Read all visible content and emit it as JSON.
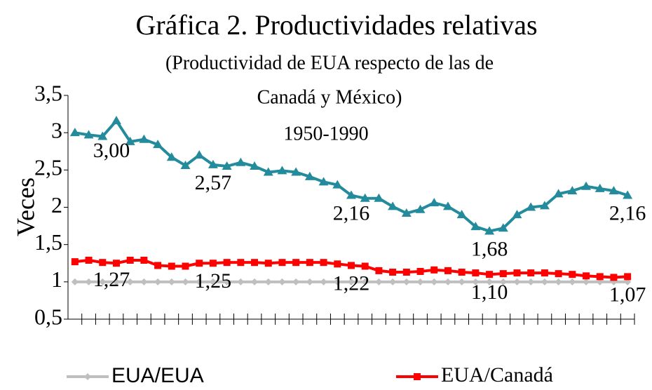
{
  "chart_data": {
    "type": "line",
    "title": "Gráfica 2. Productividades relativas",
    "subtitle": [
      "(Productividad de EUA respecto de las de",
      "Canadá y México)"
    ],
    "annotation": "1950-1990",
    "y_label": "Veces",
    "categories": [
      null,
      null,
      null,
      null,
      null,
      null,
      null,
      null,
      null,
      null,
      null,
      null,
      null,
      null,
      null,
      null,
      null,
      null,
      null,
      null,
      null,
      null,
      null,
      null,
      null,
      null,
      null,
      null,
      null,
      null,
      null,
      null,
      null,
      null,
      null,
      null,
      null,
      null,
      null,
      null,
      null
    ],
    "ylim": [
      0.5,
      3.5
    ],
    "yticks": [
      {
        "value": 0.5,
        "label": "0,5"
      },
      1,
      {
        "value": 1.5,
        "label": "1,5"
      },
      2,
      {
        "value": 2.5,
        "label": "2,5"
      },
      3,
      {
        "value": 3.5,
        "label": "3,5"
      }
    ],
    "series": [
      {
        "name": "EUA/EUA",
        "color": "#bfbfbf",
        "marker": "diamond",
        "values": [
          1,
          1,
          1,
          1,
          1,
          1,
          1,
          1,
          1,
          1,
          1,
          1,
          1,
          1,
          1,
          1,
          1,
          1,
          1,
          1,
          1,
          1,
          1,
          1,
          1,
          1,
          1,
          1,
          1,
          1,
          1,
          1,
          1,
          1,
          1,
          1,
          1,
          1,
          1,
          1,
          1
        ]
      },
      {
        "name": "EUA/Canadá",
        "color": "#ff0000",
        "marker": "square",
        "values": [
          1.27,
          1.29,
          1.26,
          1.25,
          1.29,
          1.29,
          1.22,
          1.21,
          1.21,
          1.25,
          1.25,
          1.26,
          1.26,
          1.26,
          1.25,
          1.26,
          1.26,
          1.26,
          1.26,
          1.24,
          1.22,
          1.21,
          1.15,
          1.13,
          1.13,
          1.14,
          1.16,
          1.15,
          1.13,
          1.12,
          1.1,
          1.11,
          1.12,
          1.12,
          1.12,
          1.11,
          1.1,
          1.08,
          1.07,
          1.06,
          1.07
        ],
        "value_labels": [
          "1,27",
          null,
          null,
          null,
          null,
          null,
          null,
          null,
          null,
          null,
          "1,25",
          null,
          null,
          null,
          null,
          null,
          null,
          null,
          null,
          null,
          "1,22",
          null,
          null,
          null,
          null,
          null,
          null,
          null,
          null,
          null,
          "1,10",
          null,
          null,
          null,
          null,
          null,
          null,
          null,
          null,
          null,
          "1,07"
        ]
      },
      {
        "color": "#238b9b",
        "marker": "triangle",
        "values": [
          3.0,
          2.97,
          2.95,
          3.16,
          2.88,
          2.91,
          2.84,
          2.67,
          2.56,
          2.7,
          2.57,
          2.55,
          2.6,
          2.55,
          2.47,
          2.49,
          2.47,
          2.41,
          2.34,
          2.3,
          2.16,
          2.12,
          2.12,
          2.01,
          1.92,
          1.97,
          2.06,
          2.01,
          1.9,
          1.74,
          1.68,
          1.72,
          1.9,
          2.0,
          2.02,
          2.18,
          2.22,
          2.28,
          2.25,
          2.22,
          2.16
        ],
        "value_labels": [
          "3,00",
          null,
          null,
          null,
          null,
          null,
          null,
          null,
          null,
          null,
          "2,57",
          null,
          null,
          null,
          null,
          null,
          null,
          null,
          null,
          null,
          "2,16",
          null,
          null,
          null,
          null,
          null,
          null,
          null,
          null,
          null,
          "1,68",
          null,
          null,
          null,
          null,
          null,
          null,
          null,
          null,
          null,
          "2,16"
        ]
      }
    ]
  }
}
